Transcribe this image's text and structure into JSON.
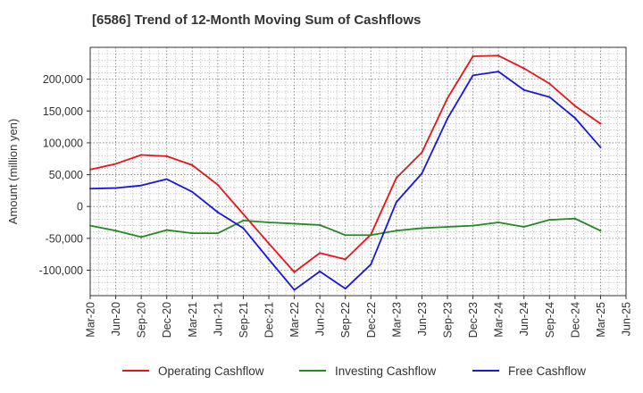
{
  "chart_data": {
    "type": "line",
    "title": "[6586]  Trend of 12-Month Moving Sum of Cashflows",
    "ylabel": "Amount (million yen)",
    "xlabel": "",
    "x_ticks": [
      "Mar-20",
      "Jun-20",
      "Sep-20",
      "Dec-20",
      "Mar-21",
      "Jun-21",
      "Sep-21",
      "Dec-21",
      "Mar-22",
      "Jun-22",
      "Sep-22",
      "Dec-22",
      "Mar-23",
      "Jun-23",
      "Sep-23",
      "Dec-23",
      "Mar-24",
      "Jun-24",
      "Sep-24",
      "Dec-24",
      "Mar-25",
      "Jun-25"
    ],
    "y_ticks": [
      -100000,
      -50000,
      0,
      50000,
      100000,
      150000,
      200000
    ],
    "y_tick_labels": [
      "-100,000",
      "-50,000",
      "0",
      "50,000",
      "100,000",
      "150,000",
      "200,000"
    ],
    "ylim": [
      -140000,
      250000
    ],
    "grid": true,
    "legend_position": "bottom",
    "categories": [
      "Mar-20",
      "Jun-20",
      "Sep-20",
      "Dec-20",
      "Mar-21",
      "Jun-21",
      "Sep-21",
      "Dec-21",
      "Mar-22",
      "Jun-22",
      "Sep-22",
      "Dec-22",
      "Mar-23",
      "Jun-23",
      "Sep-23",
      "Dec-23",
      "Mar-24",
      "Jun-24",
      "Sep-24",
      "Dec-24",
      "Mar-25"
    ],
    "series": [
      {
        "name": "Operating Cashflow",
        "color": "#e8141b",
        "values": [
          58000,
          67000,
          81000,
          79000,
          65000,
          34000,
          -12000,
          -58000,
          -103000,
          -73000,
          -83000,
          -44000,
          45000,
          85000,
          170000,
          236000,
          237000,
          217000,
          193000,
          158000,
          130000
        ]
      },
      {
        "name": "Investing Cashflow",
        "color": "#228b22",
        "values": [
          -30000,
          -38000,
          -48000,
          -37000,
          -42000,
          -42000,
          -22000,
          -25000,
          -27000,
          -29000,
          -45000,
          -45000,
          -38000,
          -34000,
          -32000,
          -30000,
          -25000,
          -32000,
          -21000,
          -19000,
          -38000
        ]
      },
      {
        "name": "Free Cashflow",
        "color": "#1a16e0",
        "values": [
          28000,
          29000,
          33000,
          43000,
          23000,
          -9000,
          -34000,
          -83000,
          -131000,
          -102000,
          -129000,
          -91000,
          7000,
          52000,
          138000,
          206000,
          212000,
          183000,
          172000,
          139000,
          93000
        ]
      }
    ]
  }
}
